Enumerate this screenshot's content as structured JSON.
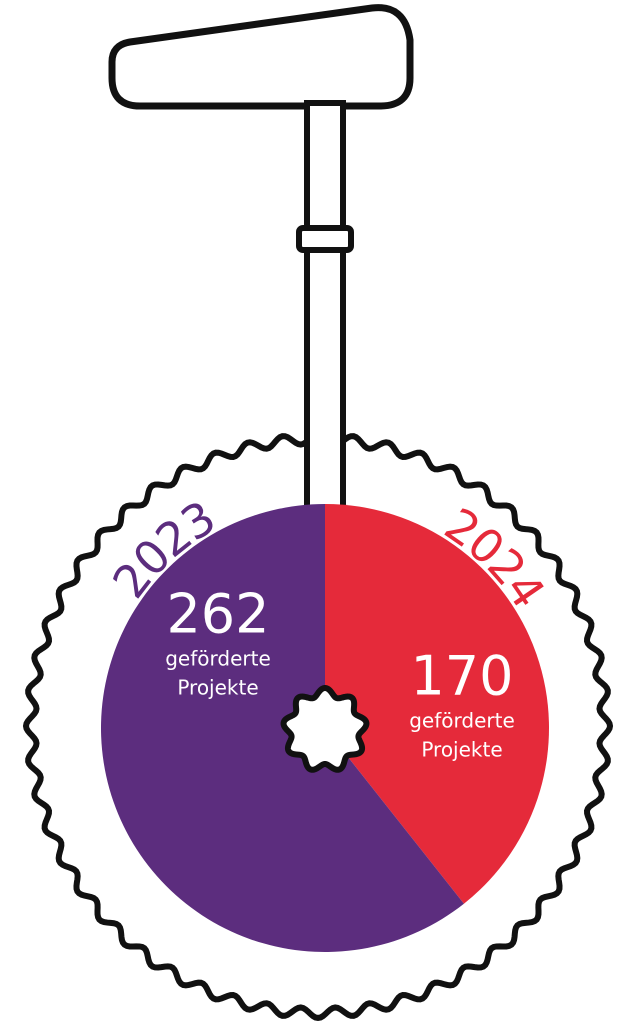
{
  "chart_data": {
    "type": "pie",
    "categories": [
      "2024",
      "2023"
    ],
    "values": [
      170,
      262
    ],
    "colors": [
      "#e52a3a",
      "#5c2d7e"
    ],
    "annotations": [
      [
        "geförderte",
        "Projekte"
      ],
      [
        "geförderte",
        "Projekte"
      ]
    ]
  }
}
